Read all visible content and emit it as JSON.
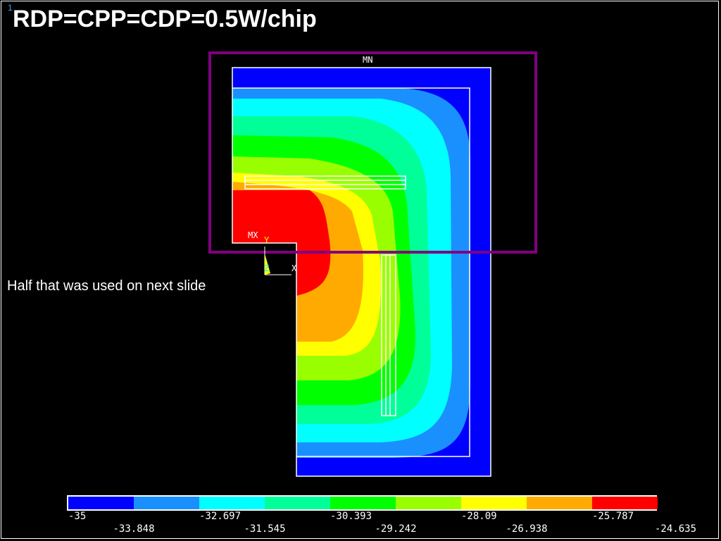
{
  "page_number": "1",
  "title": "RDP=CPP=CDP=0.5W/chip",
  "annotation": "Half that was used on next slide",
  "markers": {
    "min": "MN",
    "max": "MX"
  },
  "triad": {
    "y": "Y",
    "z": "Z",
    "x": "X"
  },
  "colors": {
    "c1": "#0000ff",
    "c2": "#1a90ff",
    "c3": "#00ffff",
    "c4": "#00ff99",
    "c5": "#00ff00",
    "c6": "#99ff00",
    "c7": "#ffff00",
    "c8": "#ffaa00",
    "c9": "#ff0000",
    "highlight": "#800080"
  },
  "legend": {
    "swatches": [
      "#0000ff",
      "#1a90ff",
      "#00ffff",
      "#00ff99",
      "#00ff00",
      "#99ff00",
      "#ffff00",
      "#ffaa00",
      "#ff0000"
    ],
    "labels_top": [
      "-35",
      "-32.697",
      "-30.393",
      "-28.09",
      "-25.787"
    ],
    "labels_bottom": [
      "-33.848",
      "-31.545",
      "-29.242",
      "-26.938",
      "-24.635"
    ]
  }
}
